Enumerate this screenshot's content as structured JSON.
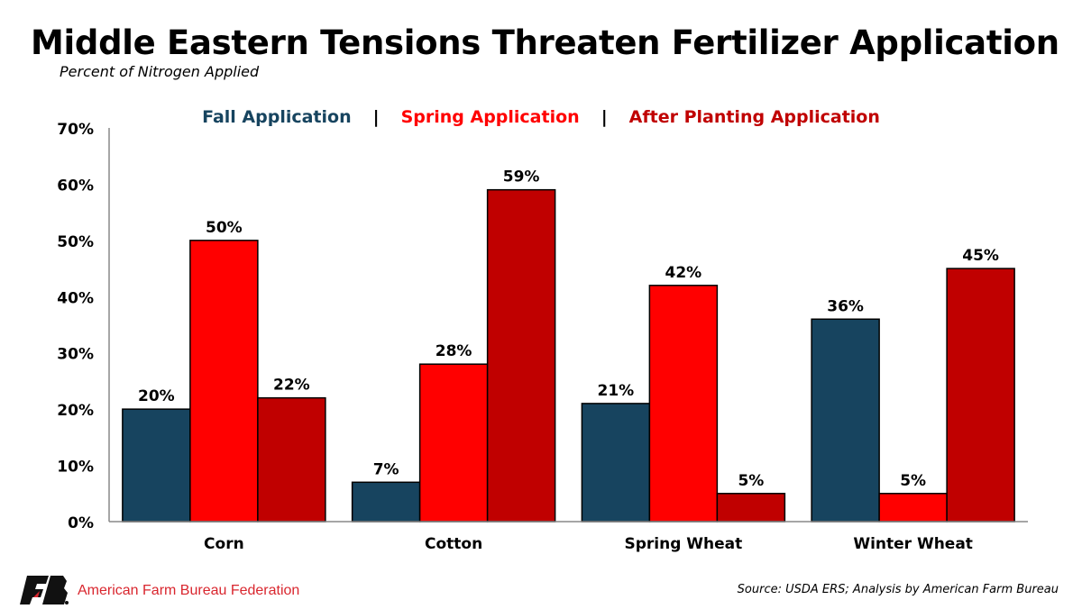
{
  "chart_data": {
    "type": "bar",
    "title": "Middle Eastern Tensions Threaten Fertilizer Application",
    "subtitle": "Percent of Nitrogen Applied",
    "categories": [
      "Corn",
      "Cotton",
      "Spring Wheat",
      "Winter Wheat"
    ],
    "series": [
      {
        "name": "Fall Application",
        "color": "#17445f",
        "values": [
          20,
          7,
          21,
          36
        ]
      },
      {
        "name": "Spring Application",
        "color": "#ff0000",
        "values": [
          50,
          28,
          42,
          5
        ]
      },
      {
        "name": "After Planting Application",
        "color": "#c00000",
        "values": [
          22,
          59,
          5,
          45
        ]
      }
    ],
    "ylim": [
      0,
      70
    ],
    "yticks": [
      "0%",
      "10%",
      "20%",
      "30%",
      "40%",
      "50%",
      "60%",
      "70%"
    ],
    "value_format": "%",
    "legend_placement": "top-center",
    "legend_separator": "|",
    "grid": false,
    "source": "Source: USDA ERS; Analysis by American Farm Bureau"
  },
  "footer": {
    "organization": "American Farm Bureau Federation",
    "logo": "FB"
  }
}
